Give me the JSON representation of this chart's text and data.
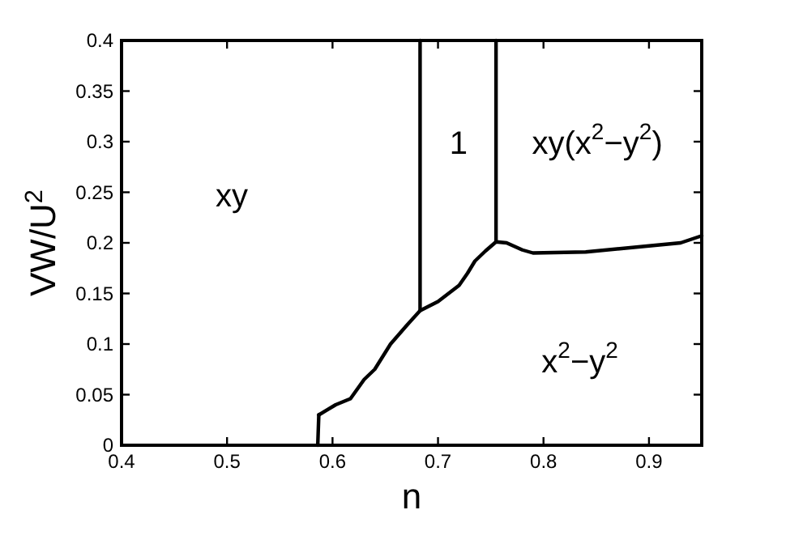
{
  "chart_data": {
    "type": "line",
    "xlabel": "n",
    "ylabel": "VW/U$^{2}$",
    "xlim": [
      0.4,
      0.95
    ],
    "ylim": [
      0,
      0.4
    ],
    "xticks": [
      0.4,
      0.5,
      0.6,
      0.7,
      0.8,
      0.9
    ],
    "yticks": [
      0,
      0.05,
      0.1,
      0.15,
      0.2,
      0.25,
      0.3,
      0.35,
      0.4
    ],
    "grid": false,
    "marker": "none",
    "line_style": "solid",
    "series": [
      {
        "color": "#000000",
        "x": [
          0.586,
          0.587
        ],
        "values": [
          0,
          0.03
        ]
      },
      {
        "color": "#000000",
        "x": [
          0.587,
          0.603,
          0.617,
          0.63,
          0.64,
          0.655,
          0.67,
          0.683,
          0.7,
          0.72,
          0.728,
          0.735,
          0.745,
          0.755,
          0.765,
          0.78,
          0.79,
          0.84,
          0.9,
          0.93,
          0.95
        ],
        "values": [
          0.03,
          0.04,
          0.046,
          0.065,
          0.075,
          0.1,
          0.118,
          0.133,
          0.142,
          0.158,
          0.17,
          0.182,
          0.192,
          0.201,
          0.2,
          0.193,
          0.19,
          0.191,
          0.197,
          0.2,
          0.207
        ]
      },
      {
        "color": "#000000",
        "x": [
          0.683,
          0.683
        ],
        "values": [
          0.133,
          0.4
        ]
      },
      {
        "color": "#000000",
        "x": [
          0.755,
          0.755
        ],
        "values": [
          0.201,
          0.4
        ]
      }
    ],
    "annotations": [
      "xy",
      "1",
      "xy(x$^{2}$−y$^{2}$)",
      "x$^{2}$−y$^{2}$"
    ]
  }
}
